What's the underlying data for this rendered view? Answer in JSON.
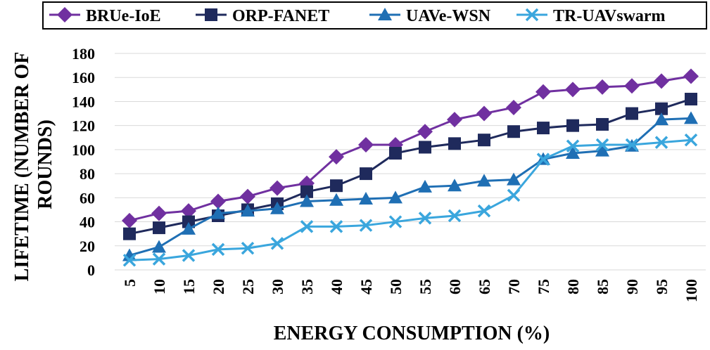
{
  "chart_data": {
    "type": "line",
    "xlabel": "ENERGY CONSUMPTION (%)",
    "ylabel": "LIFETIME (NUMBER OF ROUNDS)",
    "ylabel_lines": [
      "LIFETIME (NUMBER OF",
      "ROUNDS)"
    ],
    "categories": [
      "5",
      "10",
      "15",
      "20",
      "25",
      "30",
      "35",
      "40",
      "45",
      "50",
      "55",
      "60",
      "65",
      "70",
      "75",
      "80",
      "85",
      "90",
      "95",
      "100"
    ],
    "ylim": [
      0,
      180
    ],
    "yticks": [
      0,
      20,
      40,
      60,
      80,
      100,
      120,
      140,
      160,
      180
    ],
    "grid": true,
    "legend_position": "top",
    "series": [
      {
        "name": "BRUe-IoE",
        "color": "#7030a0",
        "marker": "diamond",
        "values": [
          41,
          47,
          49,
          57,
          61,
          68,
          72,
          94,
          104,
          104,
          115,
          125,
          130,
          135,
          148,
          150,
          152,
          153,
          157,
          161
        ]
      },
      {
        "name": "ORP-FANET",
        "color": "#1f2a5c",
        "marker": "square",
        "values": [
          30,
          35,
          40,
          45,
          50,
          55,
          65,
          70,
          80,
          97,
          102,
          105,
          108,
          115,
          118,
          120,
          121,
          130,
          134,
          142
        ]
      },
      {
        "name": "UAVe-WSN",
        "color": "#1f6fb4",
        "marker": "triangle",
        "values": [
          12,
          19,
          34,
          47,
          49,
          51,
          57,
          58,
          59,
          60,
          69,
          70,
          74,
          75,
          92,
          97,
          99,
          103,
          125,
          126
        ]
      },
      {
        "name": "TR-UAVswarm",
        "color": "#3aa6dd",
        "marker": "x",
        "values": [
          8,
          9,
          12,
          17,
          18,
          22,
          36,
          36,
          37,
          40,
          43,
          45,
          49,
          62,
          92,
          103,
          104,
          104,
          106,
          108
        ]
      }
    ]
  }
}
